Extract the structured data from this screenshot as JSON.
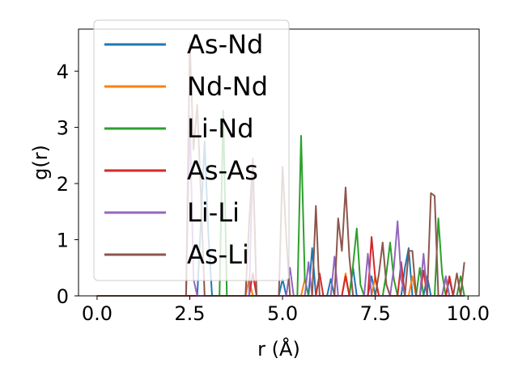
{
  "chart_data": {
    "type": "line",
    "xlabel": "r (Å)",
    "ylabel": "g(r)",
    "xlim": [
      -0.5,
      10.3
    ],
    "ylim": [
      0,
      4.75
    ],
    "xticks": [
      0.0,
      2.5,
      5.0,
      7.5,
      10.0
    ],
    "xtick_labels": [
      "0.0",
      "2.5",
      "5.0",
      "7.5",
      "10.0"
    ],
    "yticks": [
      0,
      1,
      2,
      3,
      4
    ],
    "ytick_labels": [
      "0",
      "1",
      "2",
      "3",
      "4"
    ],
    "grid": false,
    "legend_position": "upper left",
    "series": [
      {
        "name": "As-Nd",
        "color": "#1f77b4",
        "points": [
          [
            0,
            0
          ],
          [
            2.7,
            0
          ],
          [
            2.8,
            1.3
          ],
          [
            2.9,
            2.75
          ],
          [
            3.0,
            1.1
          ],
          [
            3.1,
            0
          ],
          [
            4.9,
            0
          ],
          [
            5.0,
            0.3
          ],
          [
            5.1,
            0
          ],
          [
            5.7,
            0
          ],
          [
            5.8,
            0.85
          ],
          [
            5.9,
            0
          ],
          [
            6.2,
            0
          ],
          [
            6.3,
            0.3
          ],
          [
            6.4,
            0
          ],
          [
            6.8,
            0
          ],
          [
            6.9,
            0.5
          ],
          [
            7.0,
            0
          ],
          [
            7.3,
            0
          ],
          [
            7.4,
            0.35
          ],
          [
            7.5,
            0
          ],
          [
            8.2,
            0
          ],
          [
            8.3,
            0.5
          ],
          [
            8.4,
            0.85
          ],
          [
            8.5,
            0
          ],
          [
            8.8,
            0
          ],
          [
            8.9,
            0.35
          ],
          [
            9.0,
            0
          ],
          [
            9.4,
            0
          ],
          [
            9.5,
            0.3
          ],
          [
            9.6,
            0
          ],
          [
            9.9,
            0
          ]
        ]
      },
      {
        "name": "Nd-Nd",
        "color": "#ff7f0e",
        "points": [
          [
            0,
            0
          ],
          [
            4.0,
            0
          ],
          [
            4.1,
            0.3
          ],
          [
            4.2,
            0
          ],
          [
            5.5,
            0
          ],
          [
            5.6,
            0.3
          ],
          [
            5.7,
            0
          ],
          [
            6.6,
            0
          ],
          [
            6.7,
            0.4
          ],
          [
            6.8,
            0
          ],
          [
            7.4,
            0
          ],
          [
            7.5,
            0.35
          ],
          [
            7.6,
            0
          ],
          [
            8.4,
            0
          ],
          [
            8.5,
            0.35
          ],
          [
            8.6,
            0
          ],
          [
            9.3,
            0
          ],
          [
            9.4,
            0.3
          ],
          [
            9.5,
            0
          ],
          [
            9.9,
            0
          ]
        ]
      },
      {
        "name": "Li-Nd",
        "color": "#2ca02c",
        "points": [
          [
            0,
            0
          ],
          [
            3.3,
            0
          ],
          [
            3.4,
            3.3
          ],
          [
            3.5,
            0
          ],
          [
            5.4,
            0
          ],
          [
            5.5,
            2.85
          ],
          [
            5.6,
            0.3
          ],
          [
            5.7,
            0
          ],
          [
            6.8,
            0
          ],
          [
            6.9,
            0.55
          ],
          [
            7.0,
            1.2
          ],
          [
            7.1,
            0.2
          ],
          [
            7.2,
            0
          ],
          [
            7.7,
            0
          ],
          [
            7.8,
            0.4
          ],
          [
            7.9,
            0.95
          ],
          [
            8.0,
            0.3
          ],
          [
            8.1,
            0
          ],
          [
            8.6,
            0
          ],
          [
            8.7,
            0.5
          ],
          [
            8.8,
            0
          ],
          [
            9.1,
            0
          ],
          [
            9.2,
            1.38
          ],
          [
            9.3,
            0.4
          ],
          [
            9.4,
            0
          ],
          [
            9.7,
            0
          ],
          [
            9.8,
            0.35
          ],
          [
            9.9,
            0
          ]
        ]
      },
      {
        "name": "As-As",
        "color": "#d62728",
        "points": [
          [
            0,
            0
          ],
          [
            4.1,
            0
          ],
          [
            4.2,
            0.4
          ],
          [
            4.3,
            0
          ],
          [
            5.9,
            0
          ],
          [
            6.0,
            0.4
          ],
          [
            6.1,
            0
          ],
          [
            6.6,
            0
          ],
          [
            6.7,
            0.35
          ],
          [
            6.8,
            0
          ],
          [
            7.3,
            0
          ],
          [
            7.4,
            1.05
          ],
          [
            7.5,
            0.3
          ],
          [
            7.6,
            0
          ],
          [
            8.1,
            0
          ],
          [
            8.2,
            0.6
          ],
          [
            8.3,
            0
          ],
          [
            8.7,
            0
          ],
          [
            8.8,
            0.45
          ],
          [
            8.9,
            0
          ],
          [
            9.4,
            0
          ],
          [
            9.5,
            0.35
          ],
          [
            9.6,
            0
          ],
          [
            9.9,
            0
          ]
        ]
      },
      {
        "name": "Li-Li",
        "color": "#9467bd",
        "points": [
          [
            0,
            0
          ],
          [
            2.4,
            0
          ],
          [
            2.5,
            3.2
          ],
          [
            2.6,
            0.3
          ],
          [
            2.7,
            0
          ],
          [
            4.1,
            0
          ],
          [
            4.2,
            2.45
          ],
          [
            4.3,
            0
          ],
          [
            5.1,
            0
          ],
          [
            5.2,
            0.5
          ],
          [
            5.3,
            0
          ],
          [
            5.6,
            0
          ],
          [
            5.7,
            0.6
          ],
          [
            5.8,
            0
          ],
          [
            6.3,
            0
          ],
          [
            6.4,
            0.7
          ],
          [
            6.5,
            0
          ],
          [
            7.2,
            0
          ],
          [
            7.3,
            0.75
          ],
          [
            7.4,
            0
          ],
          [
            7.9,
            0
          ],
          [
            8.0,
            0.5
          ],
          [
            8.1,
            1.33
          ],
          [
            8.2,
            0.3
          ],
          [
            8.3,
            0
          ],
          [
            8.7,
            0
          ],
          [
            8.8,
            0.75
          ],
          [
            8.9,
            0
          ],
          [
            9.3,
            0
          ],
          [
            9.4,
            0.35
          ],
          [
            9.5,
            0
          ],
          [
            9.9,
            0
          ]
        ]
      },
      {
        "name": "As-Li",
        "color": "#8c564b",
        "points": [
          [
            0,
            0
          ],
          [
            2.4,
            0
          ],
          [
            2.5,
            4.5
          ],
          [
            2.6,
            2.6
          ],
          [
            2.7,
            3.4
          ],
          [
            2.8,
            1.8
          ],
          [
            2.9,
            0
          ],
          [
            4.0,
            0
          ],
          [
            4.1,
            1.3
          ],
          [
            4.2,
            2.4
          ],
          [
            4.3,
            0
          ],
          [
            4.9,
            0
          ],
          [
            5.0,
            2.3
          ],
          [
            5.1,
            1.05
          ],
          [
            5.2,
            0
          ],
          [
            5.8,
            0
          ],
          [
            5.9,
            1.6
          ],
          [
            6.0,
            0
          ],
          [
            6.4,
            0
          ],
          [
            6.5,
            1.38
          ],
          [
            6.6,
            0.8
          ],
          [
            6.7,
            1.93
          ],
          [
            6.8,
            0.7
          ],
          [
            6.9,
            0
          ],
          [
            7.5,
            0
          ],
          [
            7.6,
            0.4
          ],
          [
            7.7,
            0.95
          ],
          [
            7.8,
            0.2
          ],
          [
            7.9,
            0
          ],
          [
            8.3,
            0
          ],
          [
            8.4,
            0.8
          ],
          [
            8.5,
            0.8
          ],
          [
            8.6,
            0
          ],
          [
            8.9,
            0
          ],
          [
            9.0,
            1.83
          ],
          [
            9.1,
            1.78
          ],
          [
            9.2,
            0
          ],
          [
            9.6,
            0
          ],
          [
            9.7,
            0.4
          ],
          [
            9.8,
            0
          ],
          [
            9.9,
            0.6
          ]
        ]
      }
    ]
  }
}
